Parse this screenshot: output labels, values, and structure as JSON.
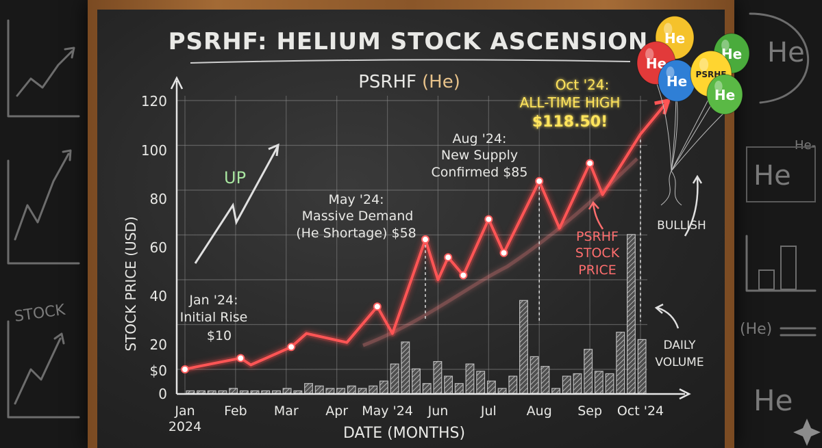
{
  "chart_data": {
    "type": "line",
    "title": "PSRHF: HELIUM STOCK ASCENSION",
    "subtitle_main": "PSRHF",
    "subtitle_symbol": "(He)",
    "ylabel": "STOCK PRICE (USD)",
    "xlabel": "DATE (MONTHS)",
    "ylim": [
      0,
      120
    ],
    "y_ticks": [
      "0",
      "$0",
      "20",
      "40",
      "60",
      "80",
      "100",
      "120"
    ],
    "x_ticks": [
      {
        "line1": "Jan",
        "line2": "2024",
        "value": 0
      },
      {
        "line1": "Feb",
        "line2": "",
        "value": 1
      },
      {
        "line1": "Mar",
        "line2": "",
        "value": 2
      },
      {
        "line1": "Apr",
        "line2": "",
        "value": 3
      },
      {
        "line1": "May '24",
        "line2": "",
        "value": 4
      },
      {
        "line1": "Jun",
        "line2": "",
        "value": 5
      },
      {
        "line1": "Jul",
        "line2": "",
        "value": 6
      },
      {
        "line1": "Aug",
        "line2": "",
        "value": 7
      },
      {
        "line1": "Sep",
        "line2": "",
        "value": 8
      },
      {
        "line1": "Oct '24",
        "line2": "",
        "value": 9
      }
    ],
    "grid": true,
    "series": [
      {
        "name": "PSRHF STOCK PRICE",
        "color": "#ff5555",
        "x": [
          0,
          0.2,
          1.1,
          1.3,
          2.1,
          2.4,
          3.2,
          3.8,
          4.1,
          4.75,
          5.0,
          5.2,
          5.5,
          6.0,
          6.3,
          7.0,
          7.4,
          8.0,
          8.25,
          9.0,
          9.55
        ],
        "y": [
          0,
          1,
          5,
          2,
          10,
          16,
          12,
          28,
          16,
          58,
          40,
          50,
          42,
          67,
          52,
          84,
          63,
          92,
          78,
          105,
          120
        ]
      }
    ],
    "volume_series": {
      "name": "DAILY VOLUME",
      "values": [
        1,
        1,
        1,
        1,
        2,
        1,
        1,
        1,
        1,
        2,
        1,
        4,
        3,
        2,
        2,
        3,
        2,
        3,
        5,
        12,
        21,
        10,
        4,
        13,
        7,
        4,
        12,
        9,
        5,
        2,
        7,
        38,
        15,
        11,
        2,
        7,
        8,
        18,
        9,
        8,
        25,
        65,
        22
      ]
    },
    "annotations": [
      {
        "lines": [
          "Jan '24:",
          "Initial Rise",
          "$10"
        ],
        "color": "#eeeeee"
      },
      {
        "lines": [
          "May '24:",
          "Massive Demand",
          "(He Shortage) $58"
        ],
        "color": "#eeeeee"
      },
      {
        "lines": [
          "Aug '24:",
          "New Supply",
          "Confirmed $85"
        ],
        "color": "#eeeeee"
      },
      {
        "lines": [
          "Oct '24:",
          "ALL-TIME HIGH",
          "$118.50!"
        ],
        "color": "#ffe45c"
      },
      {
        "lines": [
          "PSRHF",
          "STOCK",
          "PRICE"
        ],
        "color": "#ff6e6e"
      },
      {
        "lines": [
          "DAILY",
          "VOLUME"
        ],
        "color": "#eeeeee"
      },
      {
        "lines": [
          "UP"
        ],
        "color": "#a8e6a0"
      },
      {
        "lines": [
          "BULLISH"
        ],
        "color": "#eeeeee"
      }
    ]
  },
  "balloons": [
    {
      "label": "He",
      "color": "#f5c22b"
    },
    {
      "label": "He",
      "color": "#e23a3a"
    },
    {
      "label": "He",
      "color": "#4aab3c"
    },
    {
      "label": "He",
      "color": "#2f7fd6"
    },
    {
      "label": "PSRHF",
      "color": "#ffd530"
    },
    {
      "label": "He",
      "color": "#5ab945"
    }
  ],
  "side_decor": {
    "left_text": "STOCK",
    "right_texts": [
      "He",
      "He",
      "(He)",
      "He",
      "He-",
      "He"
    ]
  },
  "colors": {
    "board": "#262626",
    "frame": "#a36a35",
    "chalk": "#e9e9e6",
    "line": "#ff5555",
    "ath": "#ffe45c"
  }
}
